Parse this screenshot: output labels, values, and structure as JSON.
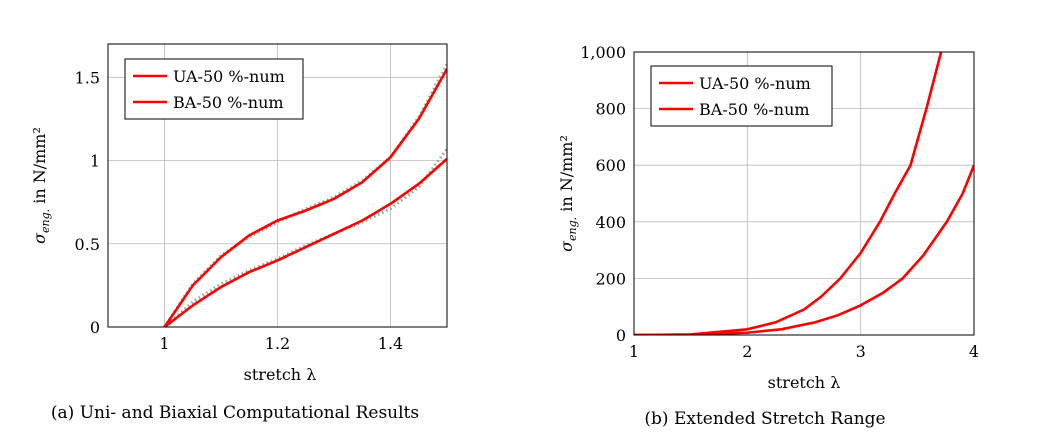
{
  "chart_data": [
    {
      "type": "line",
      "caption": "(a) Uni- and Biaxial Computational Results",
      "xlabel": "stretch λ",
      "ylabel_main": "σ",
      "ylabel_sub": "eng.",
      "ylabel_unit": " in N/mm²",
      "xlim": [
        0.9,
        1.5
      ],
      "ylim": [
        0,
        1.7
      ],
      "xticks": [
        1,
        1.2,
        1.4
      ],
      "xtick_labels": [
        "1",
        "1.2",
        "1.4"
      ],
      "yticks": [
        0,
        0.5,
        1,
        1.5
      ],
      "ytick_labels": [
        "0",
        "0.5",
        "1",
        "1.5"
      ],
      "grid": true,
      "legend_position": "top-left",
      "series": [
        {
          "name": "UA-50 %-num",
          "color": "#ff0000",
          "x": [
            1,
            1.05,
            1.1,
            1.15,
            1.2,
            1.25,
            1.3,
            1.35,
            1.4,
            1.45,
            1.5
          ],
          "y": [
            0,
            0.25,
            0.42,
            0.55,
            0.64,
            0.7,
            0.77,
            0.87,
            1.02,
            1.25,
            1.55
          ]
        },
        {
          "name": "BA-50 %-num",
          "color": "#ff0000",
          "x": [
            1,
            1.05,
            1.1,
            1.15,
            1.2,
            1.25,
            1.3,
            1.35,
            1.4,
            1.45,
            1.5
          ],
          "y": [
            0,
            0.13,
            0.24,
            0.33,
            0.4,
            0.48,
            0.56,
            0.64,
            0.74,
            0.86,
            1.01
          ]
        },
        {
          "name": "",
          "color": "#888888",
          "dotted": true,
          "x": [
            1,
            1.05,
            1.1,
            1.15,
            1.2,
            1.25,
            1.3,
            1.35,
            1.4,
            1.45,
            1.5
          ],
          "y": [
            0,
            0.26,
            0.43,
            0.54,
            0.63,
            0.71,
            0.78,
            0.88,
            1.02,
            1.26,
            1.58
          ]
        },
        {
          "name": "",
          "color": "#888888",
          "dotted": true,
          "x": [
            1,
            1.05,
            1.1,
            1.15,
            1.2,
            1.25,
            1.3,
            1.35,
            1.4,
            1.45,
            1.5
          ],
          "y": [
            0,
            0.15,
            0.26,
            0.34,
            0.41,
            0.49,
            0.56,
            0.63,
            0.71,
            0.84,
            1.07
          ]
        }
      ]
    },
    {
      "type": "line",
      "caption": "(b) Extended Stretch Range",
      "xlabel": "stretch λ",
      "ylabel_main": "σ",
      "ylabel_sub": "eng.",
      "ylabel_unit": " in N/mm²",
      "xlim": [
        1,
        4
      ],
      "ylim": [
        0,
        1000
      ],
      "xticks": [
        1,
        2,
        3,
        4
      ],
      "xtick_labels": [
        "1",
        "2",
        "3",
        "4"
      ],
      "yticks": [
        0,
        200,
        400,
        600,
        800,
        1000
      ],
      "ytick_labels": [
        "0",
        "200",
        "400",
        "600",
        "800",
        "1,000"
      ],
      "grid": true,
      "legend_position": "top-left",
      "series": [
        {
          "name": "UA-50 %-num",
          "color": "#ff0000",
          "x": [
            1,
            1.5,
            2,
            2.25,
            2.5,
            2.65,
            2.82,
            3,
            3.17,
            3.3,
            3.44,
            3.58,
            3.71
          ],
          "y": [
            0,
            2,
            20,
            45,
            90,
            135,
            200,
            290,
            400,
            500,
            600,
            800,
            1000
          ]
        },
        {
          "name": "BA-50 %-num",
          "color": "#ff0000",
          "x": [
            1,
            1.5,
            2,
            2.3,
            2.6,
            2.8,
            3,
            3.2,
            3.37,
            3.55,
            3.76,
            3.9,
            4
          ],
          "y": [
            0,
            1,
            8,
            20,
            45,
            70,
            105,
            150,
            200,
            280,
            400,
            500,
            600
          ]
        }
      ]
    }
  ]
}
